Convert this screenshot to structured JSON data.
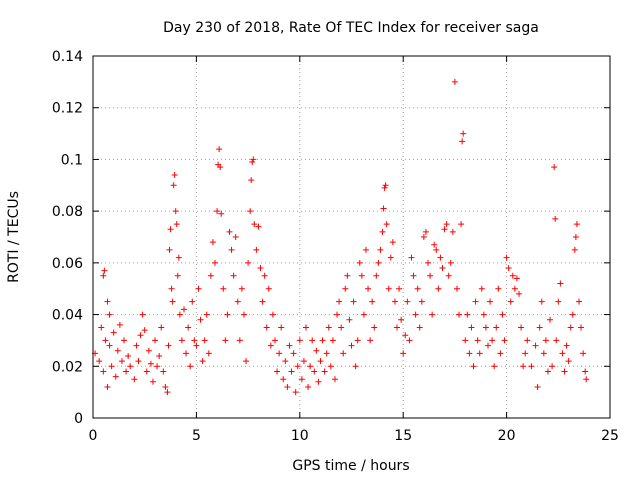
{
  "chart_data": {
    "type": "scatter",
    "title": "Day 230 of 2018, Rate Of TEC Index for receiver saga",
    "xlabel": "GPS time / hours",
    "ylabel": "ROTI / TECUs",
    "xlim": [
      0,
      25
    ],
    "ylim": [
      0,
      0.14
    ],
    "xticks": [
      0,
      5,
      10,
      15,
      20,
      25
    ],
    "xtick_labels": [
      "0",
      "5",
      "10",
      "15",
      "20",
      "25"
    ],
    "yticks": [
      0,
      0.02,
      0.04,
      0.06,
      0.08,
      0.1,
      0.12,
      0.14
    ],
    "ytick_labels": [
      "0",
      "0.02",
      "0.04",
      "0.06",
      "0.08",
      "0.1",
      "0.12",
      "0.14"
    ],
    "grid": true,
    "marker": "+",
    "color": "#ff0000",
    "series": [
      {
        "name": "ROTI",
        "points": [
          [
            0.1,
            0.025
          ],
          [
            0.3,
            0.022
          ],
          [
            0.4,
            0.035
          ],
          [
            0.5,
            0.018
          ],
          [
            0.6,
            0.03
          ],
          [
            0.7,
            0.012
          ],
          [
            0.8,
            0.028
          ],
          [
            0.9,
            0.02
          ],
          [
            1.0,
            0.033
          ],
          [
            1.1,
            0.016
          ],
          [
            0.5,
            0.055
          ],
          [
            0.55,
            0.057
          ],
          [
            0.7,
            0.045
          ],
          [
            0.8,
            0.04
          ],
          [
            1.2,
            0.026
          ],
          [
            1.3,
            0.036
          ],
          [
            1.4,
            0.022
          ],
          [
            1.5,
            0.03
          ],
          [
            1.6,
            0.018
          ],
          [
            1.7,
            0.024
          ],
          [
            1.8,
            0.02
          ],
          [
            2.0,
            0.015
          ],
          [
            2.1,
            0.028
          ],
          [
            2.2,
            0.022
          ],
          [
            2.3,
            0.032
          ],
          [
            2.4,
            0.04
          ],
          [
            2.5,
            0.034
          ],
          [
            2.6,
            0.018
          ],
          [
            2.7,
            0.026
          ],
          [
            2.8,
            0.021
          ],
          [
            2.9,
            0.014
          ],
          [
            3.0,
            0.03
          ],
          [
            3.1,
            0.02
          ],
          [
            3.2,
            0.024
          ],
          [
            3.3,
            0.035
          ],
          [
            3.4,
            0.018
          ],
          [
            3.5,
            0.012
          ],
          [
            3.6,
            0.01
          ],
          [
            3.65,
            0.028
          ],
          [
            3.7,
            0.065
          ],
          [
            3.75,
            0.073
          ],
          [
            3.8,
            0.05
          ],
          [
            3.85,
            0.045
          ],
          [
            3.9,
            0.09
          ],
          [
            3.95,
            0.094
          ],
          [
            4.0,
            0.08
          ],
          [
            4.05,
            0.075
          ],
          [
            4.1,
            0.055
          ],
          [
            4.15,
            0.062
          ],
          [
            4.2,
            0.04
          ],
          [
            4.3,
            0.03
          ],
          [
            4.4,
            0.042
          ],
          [
            4.5,
            0.025
          ],
          [
            4.6,
            0.035
          ],
          [
            4.7,
            0.02
          ],
          [
            4.8,
            0.045
          ],
          [
            4.9,
            0.03
          ],
          [
            5.0,
            0.028
          ],
          [
            5.1,
            0.05
          ],
          [
            5.2,
            0.038
          ],
          [
            5.3,
            0.022
          ],
          [
            5.4,
            0.03
          ],
          [
            5.5,
            0.04
          ],
          [
            5.6,
            0.025
          ],
          [
            5.7,
            0.055
          ],
          [
            5.8,
            0.068
          ],
          [
            5.9,
            0.06
          ],
          [
            6.0,
            0.08
          ],
          [
            6.05,
            0.098
          ],
          [
            6.1,
            0.104
          ],
          [
            6.15,
            0.097
          ],
          [
            6.2,
            0.079
          ],
          [
            6.3,
            0.05
          ],
          [
            6.4,
            0.03
          ],
          [
            6.5,
            0.04
          ],
          [
            6.6,
            0.072
          ],
          [
            6.7,
            0.065
          ],
          [
            6.8,
            0.055
          ],
          [
            6.9,
            0.07
          ],
          [
            7.0,
            0.045
          ],
          [
            7.1,
            0.03
          ],
          [
            7.2,
            0.05
          ],
          [
            7.3,
            0.04
          ],
          [
            7.4,
            0.022
          ],
          [
            7.5,
            0.06
          ],
          [
            7.6,
            0.08
          ],
          [
            7.65,
            0.092
          ],
          [
            7.7,
            0.099
          ],
          [
            7.75,
            0.1
          ],
          [
            7.8,
            0.075
          ],
          [
            7.9,
            0.065
          ],
          [
            8.0,
            0.074
          ],
          [
            8.1,
            0.058
          ],
          [
            8.2,
            0.045
          ],
          [
            8.3,
            0.055
          ],
          [
            8.4,
            0.035
          ],
          [
            8.5,
            0.05
          ],
          [
            8.6,
            0.028
          ],
          [
            8.7,
            0.04
          ],
          [
            8.8,
            0.03
          ],
          [
            8.9,
            0.018
          ],
          [
            9.0,
            0.025
          ],
          [
            9.1,
            0.035
          ],
          [
            9.2,
            0.015
          ],
          [
            9.3,
            0.022
          ],
          [
            9.4,
            0.012
          ],
          [
            9.5,
            0.028
          ],
          [
            9.6,
            0.018
          ],
          [
            9.7,
            0.025
          ],
          [
            9.8,
            0.01
          ],
          [
            9.9,
            0.02
          ],
          [
            10.0,
            0.03
          ],
          [
            10.1,
            0.015
          ],
          [
            10.2,
            0.022
          ],
          [
            10.3,
            0.035
          ],
          [
            10.4,
            0.012
          ],
          [
            10.5,
            0.02
          ],
          [
            10.6,
            0.03
          ],
          [
            10.7,
            0.018
          ],
          [
            10.8,
            0.026
          ],
          [
            10.9,
            0.014
          ],
          [
            11.0,
            0.022
          ],
          [
            11.1,
            0.03
          ],
          [
            11.2,
            0.018
          ],
          [
            11.3,
            0.025
          ],
          [
            11.4,
            0.035
          ],
          [
            11.5,
            0.02
          ],
          [
            11.6,
            0.03
          ],
          [
            11.7,
            0.015
          ],
          [
            11.8,
            0.04
          ],
          [
            11.9,
            0.045
          ],
          [
            12.0,
            0.035
          ],
          [
            12.1,
            0.025
          ],
          [
            12.2,
            0.05
          ],
          [
            12.3,
            0.055
          ],
          [
            12.4,
            0.038
          ],
          [
            12.5,
            0.028
          ],
          [
            12.6,
            0.045
          ],
          [
            12.7,
            0.02
          ],
          [
            12.8,
            0.03
          ],
          [
            12.9,
            0.06
          ],
          [
            13.0,
            0.055
          ],
          [
            13.1,
            0.04
          ],
          [
            13.2,
            0.065
          ],
          [
            13.3,
            0.05
          ],
          [
            13.4,
            0.03
          ],
          [
            13.5,
            0.045
          ],
          [
            13.6,
            0.035
          ],
          [
            13.7,
            0.055
          ],
          [
            13.8,
            0.06
          ],
          [
            13.9,
            0.065
          ],
          [
            14.0,
            0.072
          ],
          [
            14.05,
            0.081
          ],
          [
            14.1,
            0.089
          ],
          [
            14.15,
            0.09
          ],
          [
            14.2,
            0.075
          ],
          [
            14.3,
            0.05
          ],
          [
            14.4,
            0.062
          ],
          [
            14.5,
            0.068
          ],
          [
            14.6,
            0.045
          ],
          [
            14.7,
            0.035
          ],
          [
            14.8,
            0.05
          ],
          [
            14.9,
            0.038
          ],
          [
            15.0,
            0.025
          ],
          [
            15.1,
            0.032
          ],
          [
            15.2,
            0.045
          ],
          [
            15.3,
            0.03
          ],
          [
            15.4,
            0.062
          ],
          [
            15.5,
            0.055
          ],
          [
            15.6,
            0.04
          ],
          [
            15.7,
            0.05
          ],
          [
            15.8,
            0.035
          ],
          [
            15.9,
            0.045
          ],
          [
            16.0,
            0.07
          ],
          [
            16.1,
            0.072
          ],
          [
            16.2,
            0.06
          ],
          [
            16.3,
            0.055
          ],
          [
            16.4,
            0.04
          ],
          [
            16.5,
            0.067
          ],
          [
            16.6,
            0.065
          ],
          [
            16.7,
            0.05
          ],
          [
            16.8,
            0.062
          ],
          [
            16.9,
            0.058
          ],
          [
            17.0,
            0.073
          ],
          [
            17.1,
            0.075
          ],
          [
            17.2,
            0.055
          ],
          [
            17.3,
            0.06
          ],
          [
            17.4,
            0.072
          ],
          [
            17.5,
            0.13
          ],
          [
            17.6,
            0.05
          ],
          [
            17.7,
            0.04
          ],
          [
            17.8,
            0.075
          ],
          [
            17.85,
            0.107
          ],
          [
            17.9,
            0.11
          ],
          [
            18.0,
            0.03
          ],
          [
            18.1,
            0.04
          ],
          [
            18.2,
            0.025
          ],
          [
            18.3,
            0.035
          ],
          [
            18.4,
            0.02
          ],
          [
            18.5,
            0.045
          ],
          [
            18.6,
            0.03
          ],
          [
            18.7,
            0.025
          ],
          [
            18.8,
            0.05
          ],
          [
            18.9,
            0.04
          ],
          [
            19.0,
            0.035
          ],
          [
            19.1,
            0.028
          ],
          [
            19.2,
            0.045
          ],
          [
            19.3,
            0.03
          ],
          [
            19.4,
            0.02
          ],
          [
            19.5,
            0.035
          ],
          [
            19.6,
            0.05
          ],
          [
            19.7,
            0.025
          ],
          [
            19.8,
            0.04
          ],
          [
            19.9,
            0.03
          ],
          [
            20.0,
            0.062
          ],
          [
            20.1,
            0.058
          ],
          [
            20.2,
            0.045
          ],
          [
            20.3,
            0.055
          ],
          [
            20.4,
            0.05
          ],
          [
            20.5,
            0.054
          ],
          [
            20.6,
            0.048
          ],
          [
            20.7,
            0.035
          ],
          [
            20.8,
            0.02
          ],
          [
            20.9,
            0.025
          ],
          [
            21.0,
            0.03
          ],
          [
            21.2,
            0.02
          ],
          [
            21.4,
            0.028
          ],
          [
            21.5,
            0.012
          ],
          [
            21.6,
            0.035
          ],
          [
            21.7,
            0.045
          ],
          [
            21.8,
            0.025
          ],
          [
            21.9,
            0.03
          ],
          [
            22.0,
            0.018
          ],
          [
            22.1,
            0.038
          ],
          [
            22.2,
            0.02
          ],
          [
            22.3,
            0.097
          ],
          [
            22.35,
            0.077
          ],
          [
            22.4,
            0.03
          ],
          [
            22.5,
            0.045
          ],
          [
            22.6,
            0.052
          ],
          [
            22.7,
            0.025
          ],
          [
            22.8,
            0.018
          ],
          [
            22.9,
            0.028
          ],
          [
            23.0,
            0.022
          ],
          [
            23.1,
            0.035
          ],
          [
            23.2,
            0.04
          ],
          [
            23.3,
            0.065
          ],
          [
            23.35,
            0.07
          ],
          [
            23.4,
            0.075
          ],
          [
            23.5,
            0.045
          ],
          [
            23.6,
            0.035
          ],
          [
            23.7,
            0.025
          ],
          [
            23.8,
            0.018
          ],
          [
            23.85,
            0.015
          ]
        ]
      }
    ]
  }
}
